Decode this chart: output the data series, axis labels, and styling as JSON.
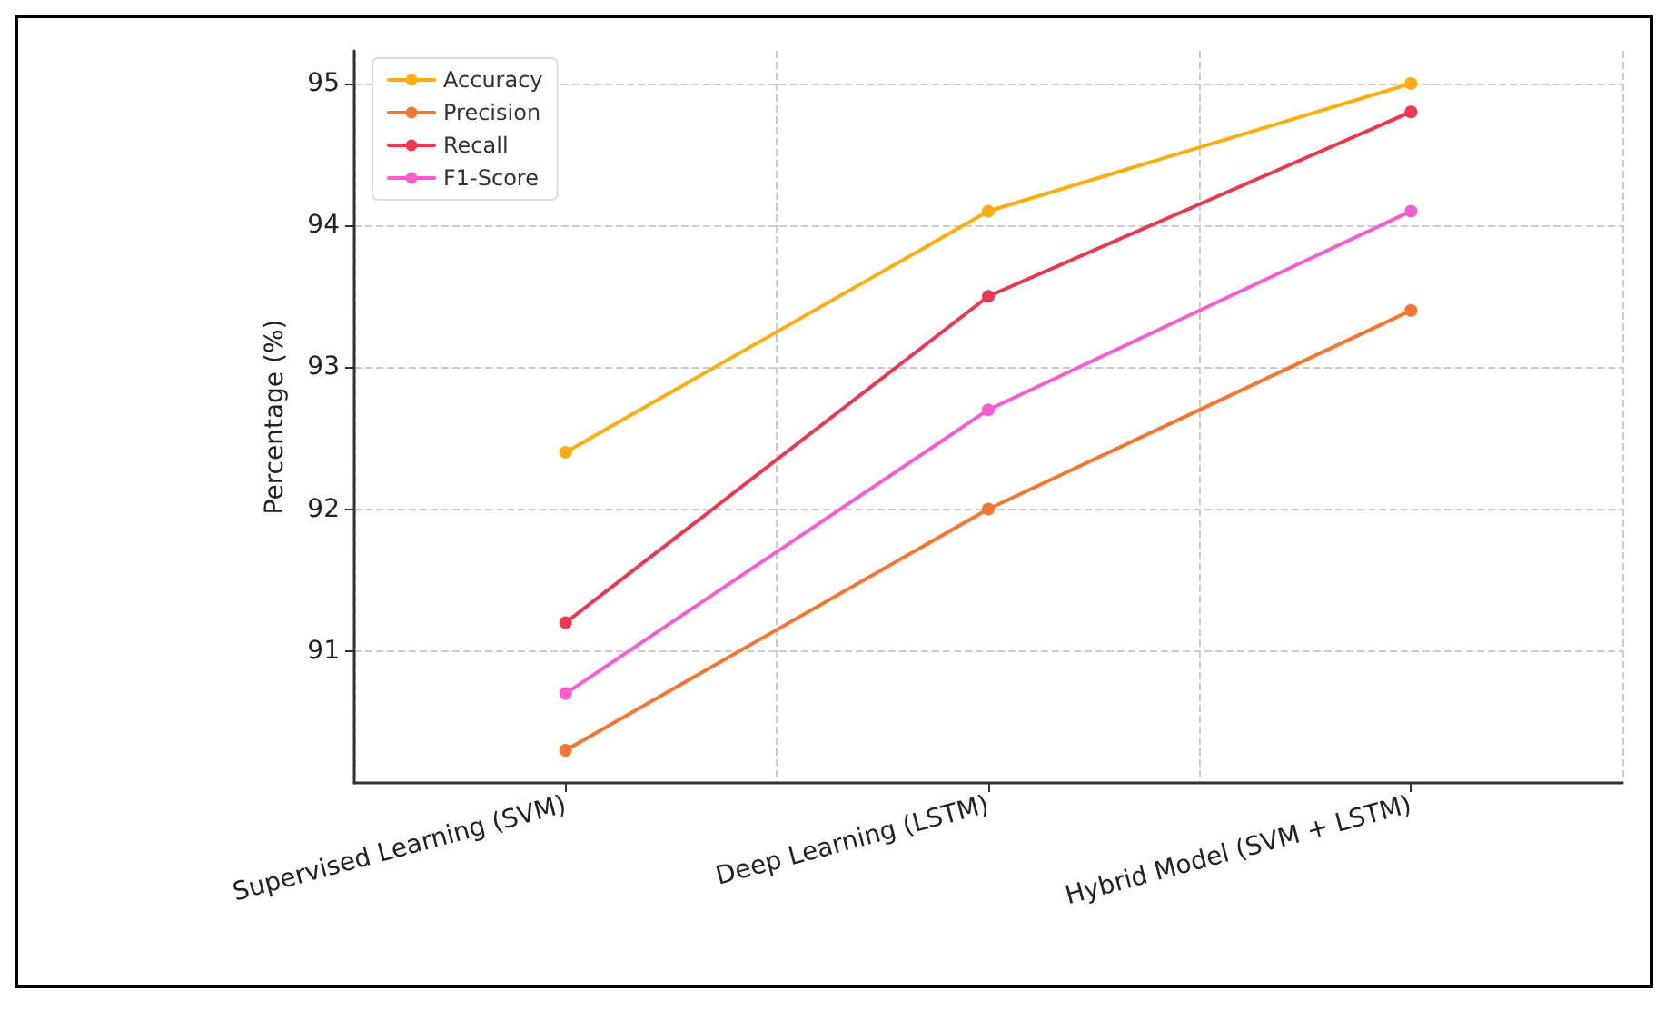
{
  "chart_data": {
    "type": "line",
    "ylabel": "Percentage (%)",
    "categories": [
      "Supervised Learning (SVM)",
      "Deep Learning (LSTM)",
      "Hybrid Model (SVM + LSTM)"
    ],
    "series": [
      {
        "name": "Accuracy",
        "color": "#ffad0d",
        "values": [
          92.4,
          94.1,
          95.0
        ]
      },
      {
        "name": "Precision",
        "color": "#f7752f",
        "values": [
          90.3,
          92.0,
          93.4
        ]
      },
      {
        "name": "Recall",
        "color": "#f0364f",
        "values": [
          91.2,
          93.5,
          94.8
        ]
      },
      {
        "name": "F1-Score",
        "color": "#fb5bd2",
        "values": [
          90.7,
          92.7,
          94.1
        ]
      }
    ],
    "ylim": [
      90.07,
      95.23
    ],
    "yticks": [
      91,
      92,
      93,
      94,
      95
    ],
    "grid": true,
    "legend": "top left",
    "marker": "circle",
    "line_style": "solid"
  }
}
